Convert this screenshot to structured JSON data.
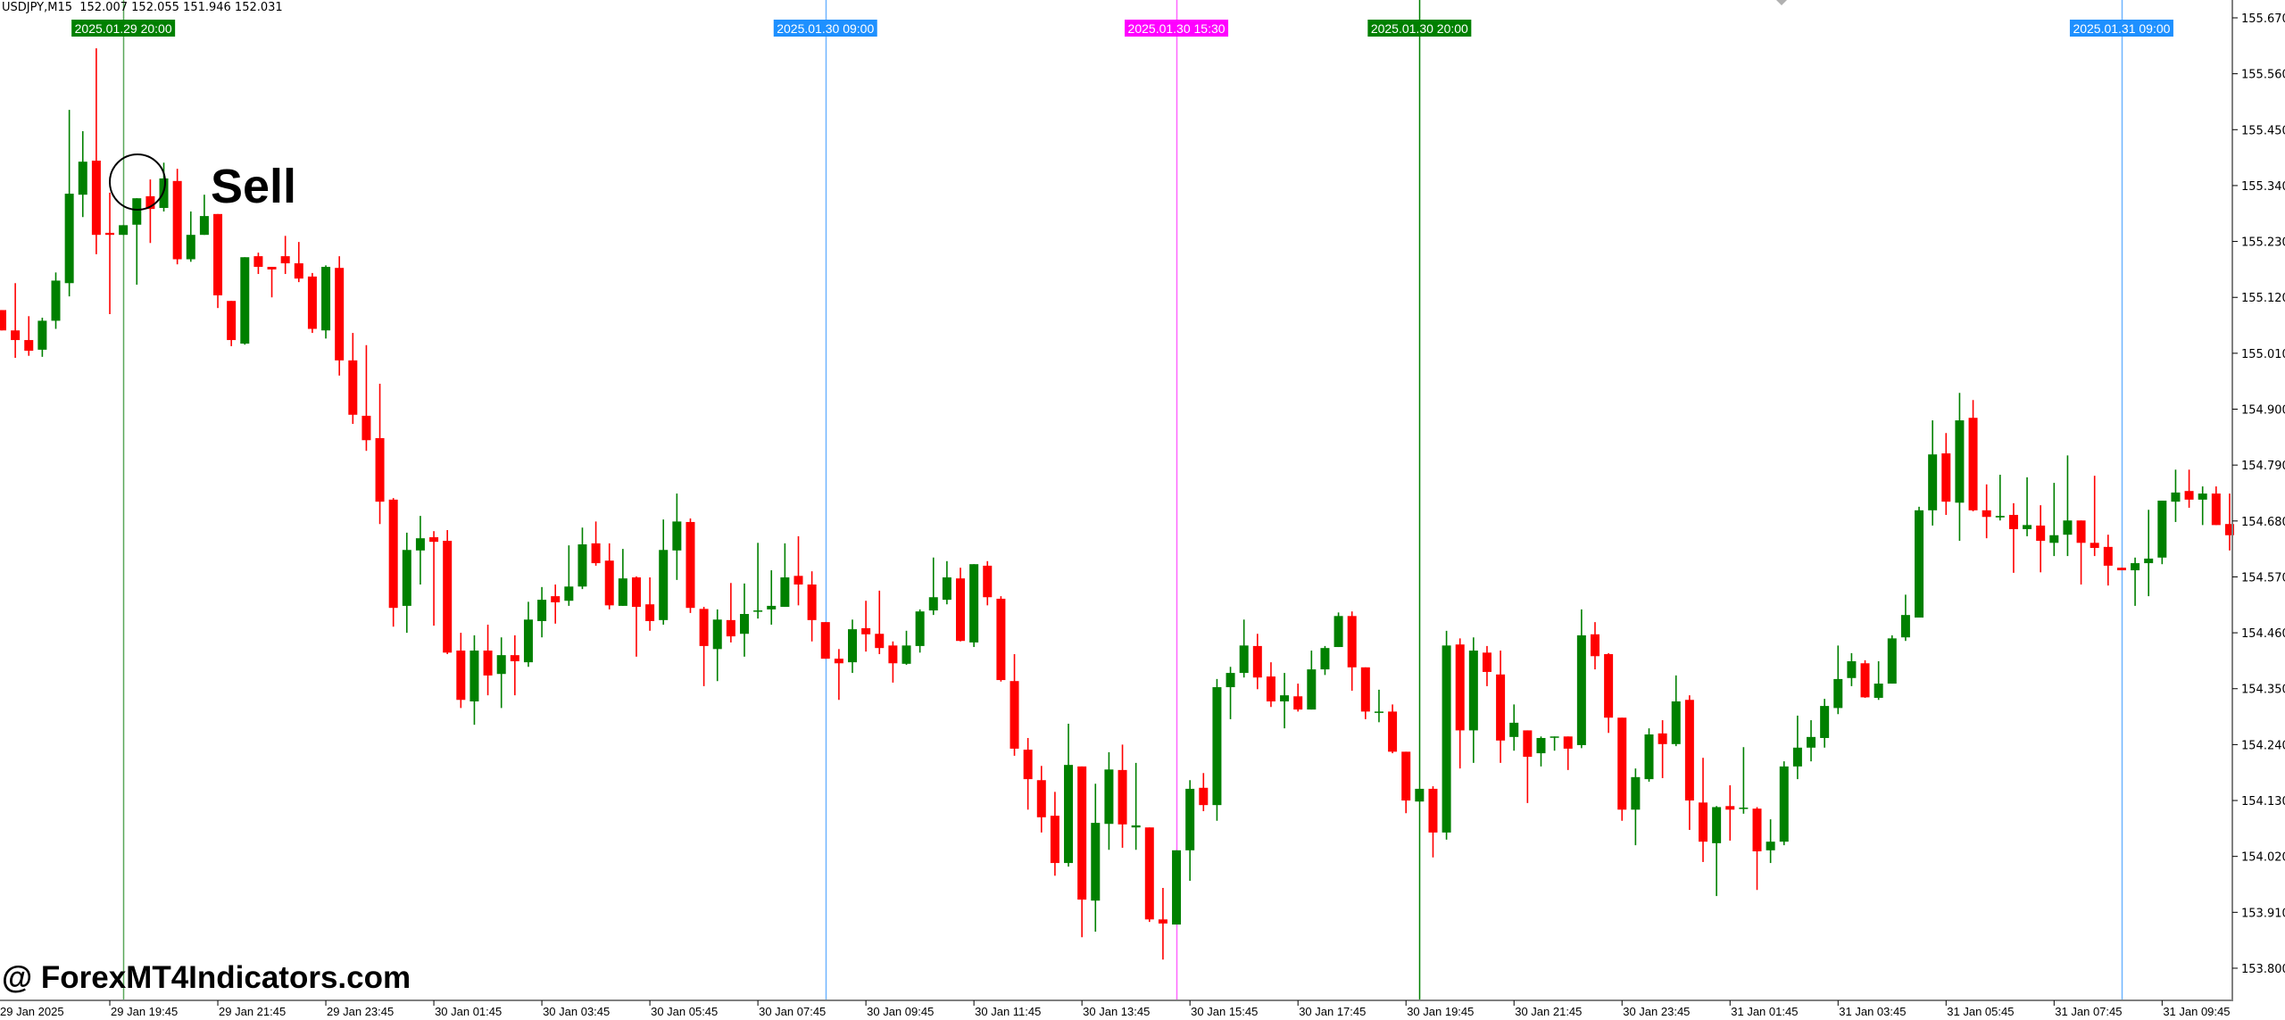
{
  "header": {
    "symbol_info": "USDJPY,M15  152.007 152.055 151.946 152.031"
  },
  "annotation": {
    "sell_label": "Sell"
  },
  "watermark": "@ ForexMT4Indicators.com",
  "colors": {
    "bull": "#008000",
    "bear": "#ff0000",
    "background": "#ffffff",
    "axis": "#808080"
  },
  "chart_data": {
    "type": "candlestick",
    "symbol": "USDJPY",
    "timeframe": "M15",
    "ylim": [
      153.77,
      155.705
    ],
    "y_ticks": [
      "155.670",
      "155.560",
      "155.450",
      "155.340",
      "155.230",
      "155.120",
      "155.010",
      "154.900",
      "154.790",
      "154.680",
      "154.570",
      "154.460",
      "154.350",
      "154.240",
      "154.130",
      "154.020",
      "153.910",
      "153.800"
    ],
    "x_ticks": [
      "29 Jan 2025",
      "29 Jan 19:45",
      "29 Jan 21:45",
      "29 Jan 23:45",
      "30 Jan 01:45",
      "30 Jan 03:45",
      "30 Jan 05:45",
      "30 Jan 07:45",
      "30 Jan 09:45",
      "30 Jan 11:45",
      "30 Jan 13:45",
      "30 Jan 15:45",
      "30 Jan 17:45",
      "30 Jan 19:45",
      "30 Jan 21:45",
      "30 Jan 23:45",
      "31 Jan 01:45",
      "31 Jan 03:45",
      "31 Jan 05:45",
      "31 Jan 07:45",
      "31 Jan 09:45"
    ],
    "grid": false,
    "vertical_markers": [
      {
        "label": "2025.01.29 20:00",
        "color": "#008000",
        "line_color": "#5aa85a"
      },
      {
        "label": "2025.01.30 09:00",
        "color": "#1e90ff",
        "line_color": "#6fb4ff"
      },
      {
        "label": "2025.01.30 15:30",
        "color": "#ff00ff",
        "line_color": "#ff66ff"
      },
      {
        "label": "2025.01.30 20:00",
        "color": "#008000",
        "line_color": "#008000"
      },
      {
        "label": "2025.01.31 09:00",
        "color": "#1e90ff",
        "line_color": "#6fb4ff"
      }
    ],
    "signal": {
      "label": "Sell",
      "at": "2025.01.29 20:00"
    },
    "ohlc_order": [
      "open",
      "high",
      "low",
      "close"
    ],
    "candles": [
      [
        155.095,
        155.095,
        155.055,
        155.055
      ],
      [
        155.055,
        155.148,
        155.001,
        155.036
      ],
      [
        155.036,
        155.083,
        155.005,
        155.015
      ],
      [
        155.017,
        155.08,
        155.003,
        155.074
      ],
      [
        155.074,
        155.169,
        155.058,
        155.153
      ],
      [
        155.148,
        155.489,
        155.122,
        155.324
      ],
      [
        155.322,
        155.447,
        155.278,
        155.387
      ],
      [
        155.389,
        155.61,
        155.205,
        155.243
      ],
      [
        155.247,
        155.326,
        155.087,
        155.243
      ],
      [
        155.243,
        155.262,
        155.243,
        155.262
      ],
      [
        155.263,
        155.315,
        155.145,
        155.315
      ],
      [
        155.319,
        155.352,
        155.227,
        155.294
      ],
      [
        155.296,
        155.385,
        155.289,
        155.354
      ],
      [
        155.349,
        155.373,
        155.185,
        155.195
      ],
      [
        155.195,
        155.289,
        155.19,
        155.243
      ],
      [
        155.243,
        155.322,
        155.243,
        155.28
      ],
      [
        155.284,
        155.284,
        155.099,
        155.124
      ],
      [
        155.113,
        155.113,
        155.024,
        155.036
      ],
      [
        155.029,
        155.199,
        155.027,
        155.199
      ],
      [
        155.201,
        155.208,
        155.166,
        155.18
      ],
      [
        155.18,
        155.18,
        155.12,
        155.175
      ],
      [
        155.201,
        155.241,
        155.166,
        155.187
      ],
      [
        155.187,
        155.229,
        155.15,
        155.157
      ],
      [
        155.161,
        155.168,
        155.05,
        155.058
      ],
      [
        155.055,
        155.183,
        155.039,
        155.18
      ],
      [
        155.178,
        155.201,
        154.966,
        154.996
      ],
      [
        154.996,
        155.05,
        154.871,
        154.889
      ],
      [
        154.887,
        155.026,
        154.818,
        154.839
      ],
      [
        154.843,
        154.95,
        154.674,
        154.718
      ],
      [
        154.722,
        154.725,
        154.472,
        154.509
      ],
      [
        154.513,
        154.657,
        154.46,
        154.623
      ],
      [
        154.622,
        154.69,
        154.555,
        154.646
      ],
      [
        154.648,
        154.66,
        154.474,
        154.639
      ],
      [
        154.641,
        154.662,
        154.418,
        154.421
      ],
      [
        154.425,
        154.46,
        154.312,
        154.328
      ],
      [
        154.325,
        154.455,
        154.279,
        154.425
      ],
      [
        154.425,
        154.476,
        154.337,
        154.376
      ],
      [
        154.379,
        154.451,
        154.312,
        154.416
      ],
      [
        154.416,
        154.455,
        154.337,
        154.404
      ],
      [
        154.402,
        154.521,
        154.393,
        154.486
      ],
      [
        154.483,
        154.55,
        154.451,
        154.525
      ],
      [
        154.532,
        154.555,
        154.478,
        154.52
      ],
      [
        154.523,
        154.632,
        154.513,
        154.551
      ],
      [
        154.551,
        154.667,
        154.546,
        154.634
      ],
      [
        154.636,
        154.679,
        154.592,
        154.597
      ],
      [
        154.602,
        154.636,
        154.506,
        154.514
      ],
      [
        154.513,
        154.625,
        154.513,
        154.567
      ],
      [
        154.569,
        154.571,
        154.413,
        154.511
      ],
      [
        154.516,
        154.569,
        154.464,
        154.483
      ],
      [
        154.485,
        154.683,
        154.476,
        154.623
      ],
      [
        154.622,
        154.734,
        154.564,
        154.679
      ],
      [
        154.678,
        154.685,
        154.499,
        154.509
      ],
      [
        154.507,
        154.511,
        154.355,
        154.434
      ],
      [
        154.428,
        154.506,
        154.365,
        154.486
      ],
      [
        154.485,
        154.558,
        154.441,
        154.453
      ],
      [
        154.458,
        154.557,
        154.413,
        154.497
      ],
      [
        154.502,
        154.637,
        154.488,
        154.504
      ],
      [
        154.506,
        154.583,
        154.476,
        154.513
      ],
      [
        154.511,
        154.636,
        154.511,
        154.569
      ],
      [
        154.572,
        154.65,
        154.514,
        154.555
      ],
      [
        154.555,
        154.581,
        154.443,
        154.485
      ],
      [
        154.481,
        154.481,
        154.409,
        154.409
      ],
      [
        154.409,
        154.428,
        154.328,
        154.4
      ],
      [
        154.402,
        154.486,
        154.381,
        154.467
      ],
      [
        154.469,
        154.523,
        154.423,
        154.457
      ],
      [
        154.458,
        154.543,
        154.418,
        154.43
      ],
      [
        154.435,
        154.443,
        154.362,
        154.4
      ],
      [
        154.399,
        154.464,
        154.397,
        154.435
      ],
      [
        154.434,
        154.506,
        154.421,
        154.502
      ],
      [
        154.504,
        154.608,
        154.495,
        154.53
      ],
      [
        154.525,
        154.601,
        154.516,
        154.569
      ],
      [
        154.567,
        154.588,
        154.443,
        154.444
      ],
      [
        154.441,
        154.595,
        154.432,
        154.595
      ],
      [
        154.592,
        154.601,
        154.514,
        154.53
      ],
      [
        154.527,
        154.532,
        154.364,
        154.367
      ],
      [
        154.365,
        154.418,
        154.218,
        154.232
      ],
      [
        154.23,
        154.253,
        154.112,
        154.172
      ],
      [
        154.17,
        154.198,
        154.067,
        154.097
      ],
      [
        154.1,
        154.147,
        153.982,
        154.007
      ],
      [
        154.007,
        154.281,
        154.0,
        154.2
      ],
      [
        154.197,
        154.197,
        153.861,
        153.935
      ],
      [
        153.933,
        154.163,
        153.872,
        154.086
      ],
      [
        154.084,
        154.225,
        154.033,
        154.191
      ],
      [
        154.19,
        154.24,
        154.037,
        154.083
      ],
      [
        154.077,
        154.204,
        154.033,
        154.081
      ],
      [
        154.077,
        154.077,
        153.891,
        153.896
      ],
      [
        153.896,
        153.958,
        153.817,
        153.888
      ],
      [
        153.886,
        154.032,
        153.886,
        154.032
      ],
      [
        154.032,
        154.17,
        153.972,
        154.153
      ],
      [
        154.155,
        154.184,
        154.109,
        154.121
      ],
      [
        154.121,
        154.369,
        154.09,
        154.353
      ],
      [
        154.353,
        154.393,
        154.29,
        154.381
      ],
      [
        154.381,
        154.486,
        154.372,
        154.435
      ],
      [
        154.434,
        154.458,
        154.349,
        154.372
      ],
      [
        154.374,
        154.402,
        154.314,
        154.325
      ],
      [
        154.325,
        154.381,
        154.272,
        154.337
      ],
      [
        154.335,
        154.36,
        154.305,
        154.309
      ],
      [
        154.309,
        154.425,
        154.309,
        154.388
      ],
      [
        154.388,
        154.434,
        154.377,
        154.43
      ],
      [
        154.432,
        154.5,
        154.432,
        154.493
      ],
      [
        154.493,
        154.502,
        154.346,
        154.392
      ],
      [
        154.392,
        154.392,
        154.29,
        154.305
      ],
      [
        154.304,
        154.348,
        154.284,
        154.305
      ],
      [
        154.305,
        154.319,
        154.223,
        154.226
      ],
      [
        154.226,
        154.226,
        154.105,
        154.13
      ],
      [
        154.128,
        154.153,
        154.128,
        154.153
      ],
      [
        154.153,
        154.158,
        154.018,
        154.067
      ],
      [
        154.067,
        154.464,
        154.053,
        154.435
      ],
      [
        154.437,
        154.449,
        154.193,
        154.268
      ],
      [
        154.268,
        154.451,
        154.204,
        154.425
      ],
      [
        154.421,
        154.434,
        154.355,
        154.383
      ],
      [
        154.378,
        154.425,
        154.204,
        154.248
      ],
      [
        154.255,
        154.319,
        154.228,
        154.283
      ],
      [
        154.268,
        154.268,
        154.125,
        154.216
      ],
      [
        154.223,
        154.256,
        154.197,
        154.253
      ],
      [
        154.254,
        154.256,
        154.228,
        154.256
      ],
      [
        154.256,
        154.256,
        154.19,
        154.232
      ],
      [
        154.239,
        154.506,
        154.233,
        154.455
      ],
      [
        154.457,
        154.481,
        154.388,
        154.414
      ],
      [
        154.418,
        154.42,
        154.263,
        154.293
      ],
      [
        154.293,
        154.293,
        154.09,
        154.112
      ],
      [
        154.112,
        154.193,
        154.042,
        154.176
      ],
      [
        154.172,
        154.272,
        154.167,
        154.26
      ],
      [
        154.262,
        154.288,
        154.174,
        154.241
      ],
      [
        154.241,
        154.376,
        154.237,
        154.325
      ],
      [
        154.328,
        154.337,
        154.072,
        154.13
      ],
      [
        154.126,
        154.214,
        154.009,
        154.049
      ],
      [
        154.046,
        154.119,
        153.942,
        154.117
      ],
      [
        154.119,
        154.16,
        154.051,
        154.112
      ],
      [
        154.114,
        154.235,
        154.104,
        154.116
      ],
      [
        154.114,
        154.117,
        153.954,
        154.03
      ],
      [
        154.032,
        154.093,
        154.007,
        154.049
      ],
      [
        154.049,
        154.207,
        154.042,
        154.197
      ],
      [
        154.197,
        154.297,
        154.172,
        154.234
      ],
      [
        154.234,
        154.288,
        154.207,
        154.255
      ],
      [
        154.253,
        154.33,
        154.234,
        154.316
      ],
      [
        154.312,
        154.435,
        154.3,
        154.369
      ],
      [
        154.371,
        154.42,
        154.355,
        154.404
      ],
      [
        154.4,
        154.406,
        154.332,
        154.333
      ],
      [
        154.332,
        154.404,
        154.328,
        154.36
      ],
      [
        154.36,
        154.455,
        154.36,
        154.449
      ],
      [
        154.451,
        154.535,
        154.444,
        154.495
      ],
      [
        154.49,
        154.708,
        154.49,
        154.701
      ],
      [
        154.701,
        154.878,
        154.671,
        154.811
      ],
      [
        154.813,
        154.853,
        154.692,
        154.718
      ],
      [
        154.716,
        154.932,
        154.641,
        154.878
      ],
      [
        154.883,
        154.918,
        154.699,
        154.701
      ],
      [
        154.701,
        154.752,
        154.646,
        154.688
      ],
      [
        154.687,
        154.771,
        154.681,
        154.69
      ],
      [
        154.692,
        154.715,
        154.578,
        154.664
      ],
      [
        154.664,
        154.766,
        154.65,
        154.672
      ],
      [
        154.671,
        154.711,
        154.579,
        154.641
      ],
      [
        154.637,
        154.755,
        154.611,
        154.652
      ],
      [
        154.653,
        154.809,
        154.611,
        154.681
      ],
      [
        154.681,
        154.681,
        154.555,
        154.637
      ],
      [
        154.637,
        154.769,
        154.611,
        154.627
      ],
      [
        154.629,
        154.653,
        154.553,
        154.592
      ],
      [
        154.588,
        154.588,
        154.583,
        154.583
      ],
      [
        154.583,
        154.608,
        154.513,
        154.597
      ],
      [
        154.597,
        154.702,
        154.532,
        154.606
      ],
      [
        154.608,
        154.72,
        154.595,
        154.72
      ],
      [
        154.718,
        154.781,
        154.678,
        154.736
      ],
      [
        154.739,
        154.781,
        154.706,
        154.722
      ],
      [
        154.722,
        154.748,
        154.672,
        154.734
      ],
      [
        154.734,
        154.748,
        154.672,
        154.672
      ],
      [
        154.674,
        154.734,
        154.622,
        154.652
      ]
    ]
  }
}
